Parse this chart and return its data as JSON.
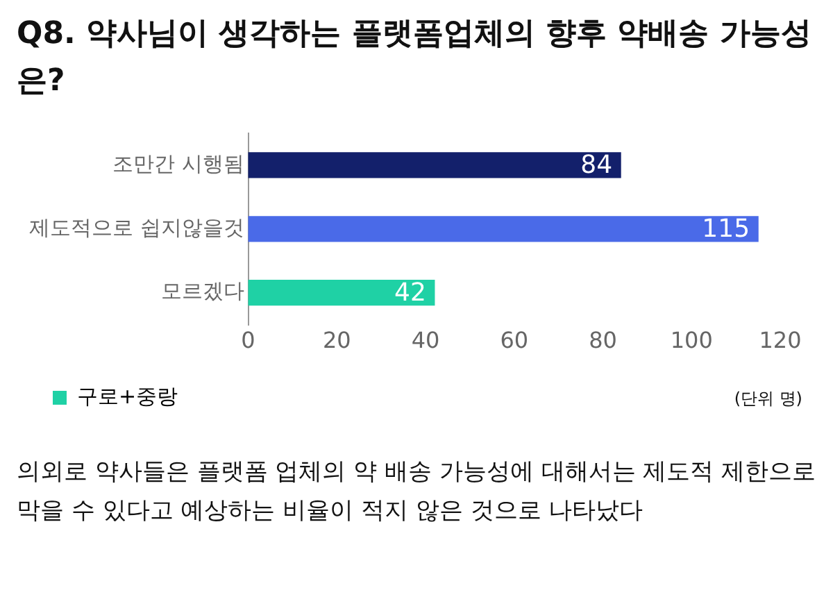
{
  "chart_data": {
    "type": "bar",
    "orientation": "horizontal",
    "title": "Q8. 약사님이 생각하는 플랫폼업체의 향후 약배송 가능성은?",
    "categories": [
      "조만간 시행됨",
      "제도적으로 쉽지않을것",
      "모르겠다"
    ],
    "series": [
      {
        "name": "구로+중랑",
        "color": "#1fd1a5",
        "colors": [
          "#13206b",
          "#4a6ae8",
          "#1fd1a5"
        ],
        "values": [
          84,
          115,
          42
        ]
      }
    ],
    "xlim": [
      0,
      120
    ],
    "xticks": [
      0,
      20,
      40,
      60,
      80,
      100,
      120
    ],
    "grid": false,
    "legend": "bottom",
    "data_labels": true,
    "annotations": [
      "(단위 명)",
      "의외로 약사들은 플랫폼 업체의 약 배송 가능성에 대해서는 제도적 제한으로 막을 수 있다고 예상하는 비율이 적지 않은 것으로 나타났다"
    ]
  }
}
